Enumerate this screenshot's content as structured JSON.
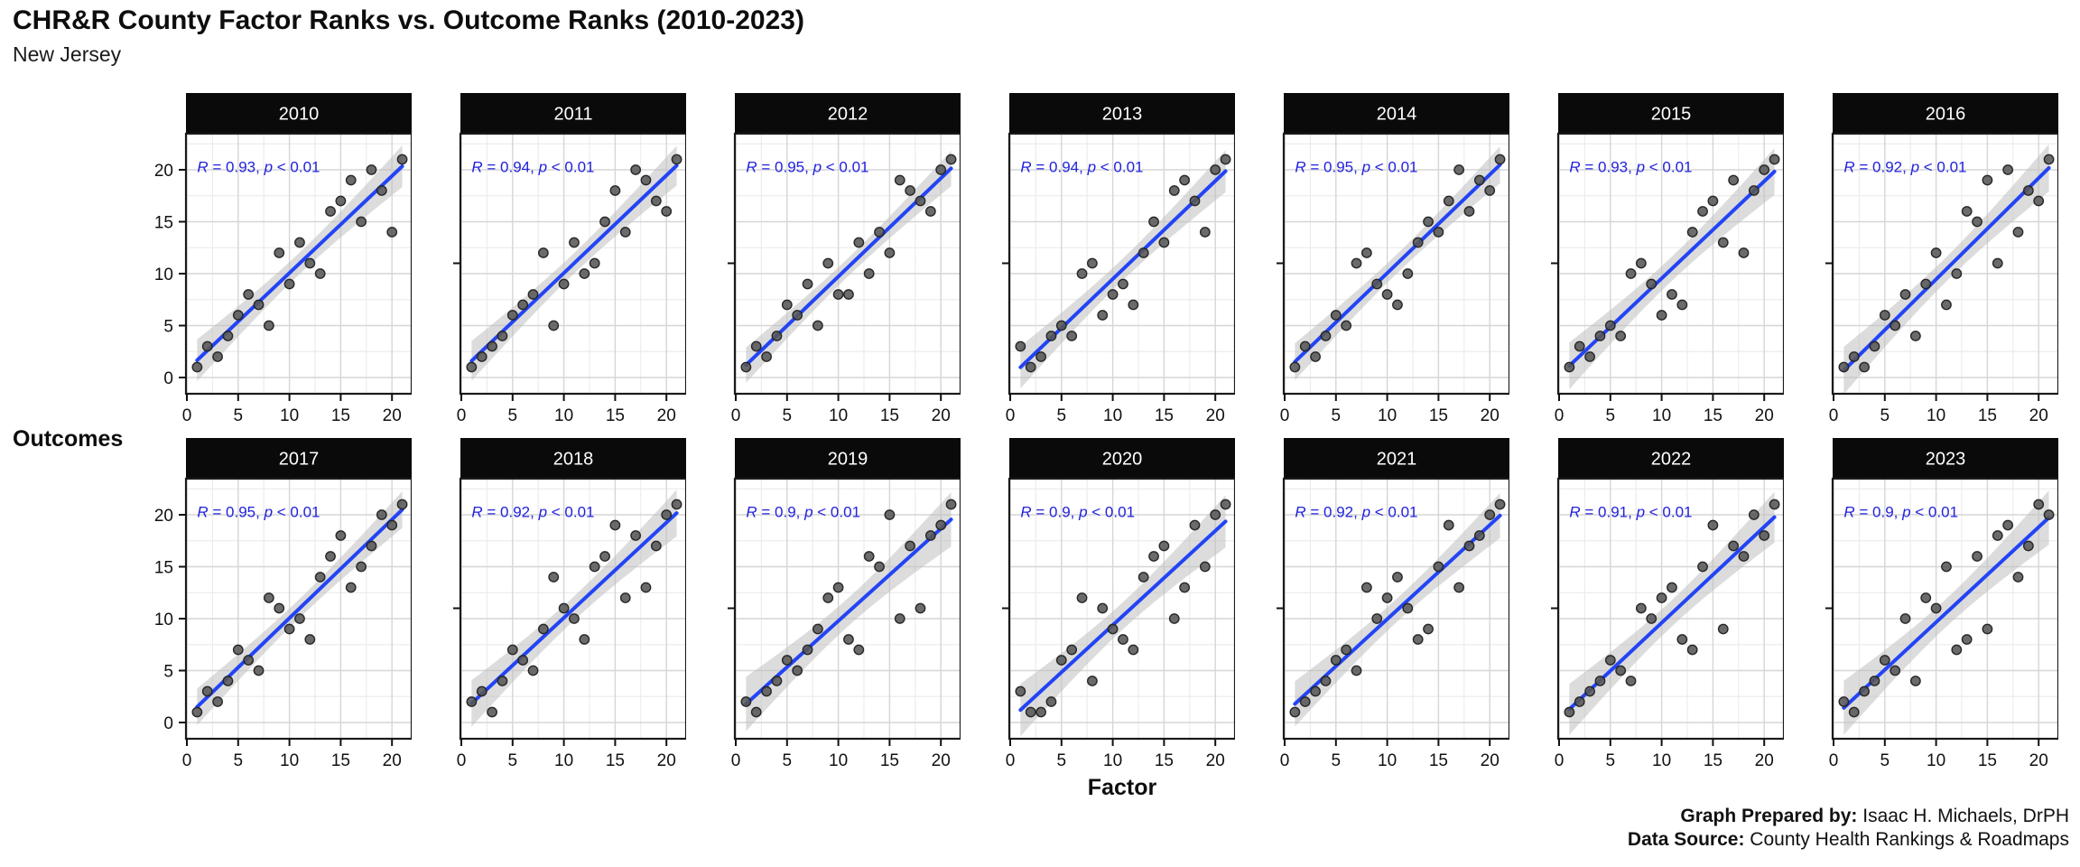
{
  "title": "CHR&R County Factor Ranks vs. Outcome Ranks (2010-2023)",
  "subtitle": "New Jersey",
  "axes": {
    "x_title": "Factor",
    "y_title": "Outcomes",
    "tick_labels": [
      "0",
      "5",
      "10",
      "15",
      "20"
    ],
    "tick_values": [
      0,
      5,
      10,
      15,
      20
    ]
  },
  "footer": {
    "prepared_label": "Graph Prepared by:",
    "prepared_value": " Isaac H. Michaels, DrPH",
    "source_label": "Data Source:",
    "source_value": " County Health Rankings & Roadmaps"
  },
  "colors": {
    "strip_bg": "#0a0a0a",
    "strip_text": "#ffffff",
    "panel_bg": "#ffffff",
    "panel_border": "#1a1a1a",
    "grid_major": "#d6d6d6",
    "grid_minor": "#ececec",
    "trend_line": "#2244f5",
    "conf_band": "#bfbfbf",
    "point_fill": "#565656",
    "point_stroke": "#212121",
    "annotation_blue": "#2222dd",
    "tick_text": "#111111"
  },
  "chart_data": {
    "type": "scatter",
    "layout": "facet-grid 2 rows x 7 cols",
    "xlabel": "Factor",
    "ylabel": "Outcomes",
    "xlim": [
      -0.1,
      21.9
    ],
    "ylim": [
      -1.6,
      23.4
    ],
    "x_ticks": [
      0,
      5,
      10,
      15,
      20
    ],
    "y_ticks": [
      0,
      5,
      10,
      15,
      20
    ],
    "grid": "major and minor on",
    "trend": "linear regression with 95% confidence band per facet",
    "x_shared": [
      1,
      2,
      3,
      4,
      5,
      6,
      7,
      8,
      9,
      10,
      11,
      12,
      13,
      14,
      15,
      16,
      17,
      18,
      19,
      20,
      21
    ],
    "facets": [
      {
        "year": "2010",
        "r": "0.93",
        "p": "< 0.01",
        "y": [
          1,
          3,
          2,
          4,
          6,
          8,
          7,
          5,
          12,
          9,
          13,
          11,
          10,
          16,
          17,
          19,
          15,
          20,
          18,
          14,
          21
        ]
      },
      {
        "year": "2011",
        "r": "0.94",
        "p": "< 0.01",
        "y": [
          1,
          2,
          3,
          4,
          6,
          7,
          8,
          12,
          5,
          9,
          13,
          10,
          11,
          15,
          18,
          14,
          20,
          19,
          17,
          16,
          21
        ]
      },
      {
        "year": "2012",
        "r": "0.95",
        "p": "< 0.01",
        "y": [
          1,
          3,
          2,
          4,
          7,
          6,
          9,
          5,
          11,
          8,
          8,
          13,
          10,
          14,
          12,
          19,
          18,
          17,
          16,
          20,
          21
        ]
      },
      {
        "year": "2013",
        "r": "0.94",
        "p": "< 0.01",
        "y": [
          3,
          1,
          2,
          4,
          5,
          4,
          10,
          11,
          6,
          8,
          9,
          7,
          12,
          15,
          13,
          18,
          19,
          17,
          14,
          20,
          21
        ]
      },
      {
        "year": "2014",
        "r": "0.95",
        "p": "< 0.01",
        "y": [
          1,
          3,
          2,
          4,
          6,
          5,
          11,
          12,
          9,
          8,
          7,
          10,
          13,
          15,
          14,
          17,
          20,
          16,
          19,
          18,
          21
        ]
      },
      {
        "year": "2015",
        "r": "0.93",
        "p": "< 0.01",
        "y": [
          1,
          3,
          2,
          4,
          5,
          4,
          10,
          11,
          9,
          6,
          8,
          7,
          14,
          16,
          17,
          13,
          19,
          12,
          18,
          20,
          21
        ]
      },
      {
        "year": "2016",
        "r": "0.92",
        "p": "< 0.01",
        "y": [
          1,
          2,
          1,
          3,
          6,
          5,
          8,
          4,
          9,
          12,
          7,
          10,
          16,
          15,
          19,
          11,
          20,
          14,
          18,
          17,
          21
        ]
      },
      {
        "year": "2017",
        "r": "0.95",
        "p": "< 0.01",
        "y": [
          1,
          3,
          2,
          4,
          7,
          6,
          5,
          12,
          11,
          9,
          10,
          8,
          14,
          16,
          18,
          13,
          15,
          17,
          20,
          19,
          21
        ]
      },
      {
        "year": "2018",
        "r": "0.92",
        "p": "< 0.01",
        "y": [
          2,
          3,
          1,
          4,
          7,
          6,
          5,
          9,
          14,
          11,
          10,
          8,
          15,
          16,
          19,
          12,
          18,
          13,
          17,
          20,
          21
        ]
      },
      {
        "year": "2019",
        "r": "0.9",
        "p": "< 0.01",
        "y": [
          2,
          1,
          3,
          4,
          6,
          5,
          7,
          9,
          12,
          13,
          8,
          7,
          16,
          15,
          20,
          10,
          17,
          11,
          18,
          19,
          21
        ]
      },
      {
        "year": "2020",
        "r": "0.9",
        "p": "< 0.01",
        "y": [
          3,
          1,
          1,
          2,
          6,
          7,
          12,
          4,
          11,
          9,
          8,
          7,
          14,
          16,
          17,
          10,
          13,
          19,
          15,
          20,
          21
        ]
      },
      {
        "year": "2021",
        "r": "0.92",
        "p": "< 0.01",
        "y": [
          1,
          2,
          3,
          4,
          6,
          7,
          5,
          13,
          10,
          12,
          14,
          11,
          8,
          9,
          15,
          19,
          13,
          17,
          18,
          20,
          21
        ]
      },
      {
        "year": "2022",
        "r": "0.91",
        "p": "< 0.01",
        "y": [
          1,
          2,
          3,
          4,
          6,
          5,
          4,
          11,
          10,
          12,
          13,
          8,
          7,
          15,
          19,
          9,
          17,
          16,
          20,
          18,
          21
        ]
      },
      {
        "year": "2023",
        "r": "0.9",
        "p": "< 0.01",
        "y": [
          2,
          1,
          3,
          4,
          6,
          5,
          10,
          4,
          12,
          11,
          15,
          7,
          8,
          16,
          9,
          18,
          19,
          14,
          17,
          21,
          20
        ]
      }
    ]
  }
}
